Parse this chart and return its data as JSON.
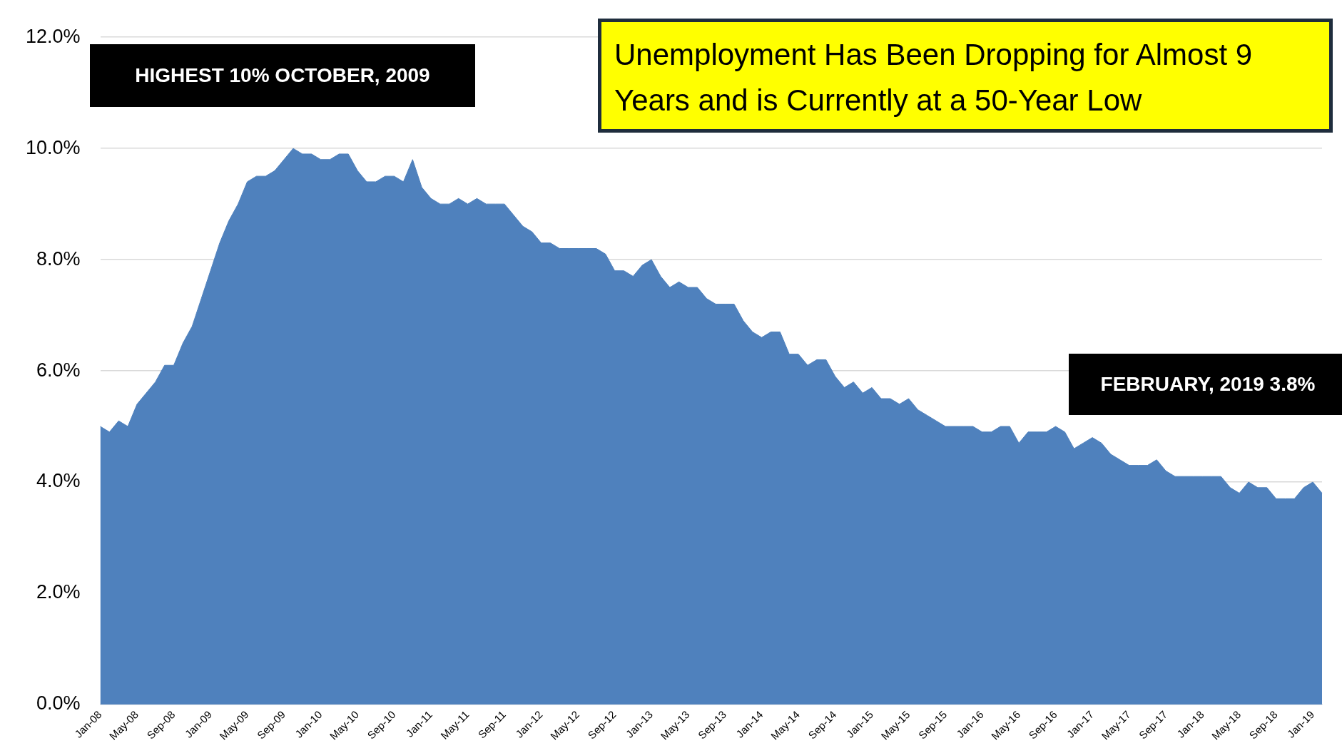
{
  "chart_data": {
    "type": "area",
    "title": "Unemployment Has Been Dropping for Almost 9 Years and is Currently at a 50-Year Low",
    "annotations": [
      "HIGHEST 10% OCTOBER, 2009",
      "FEBRUARY, 2019 3.8%"
    ],
    "categories": [
      "Jan-08",
      null,
      null,
      null,
      "May-08",
      null,
      null,
      null,
      "Sep-08",
      null,
      null,
      null,
      "Jan-09",
      null,
      null,
      null,
      "May-09",
      null,
      null,
      null,
      "Sep-09",
      null,
      null,
      null,
      "Jan-10",
      null,
      null,
      null,
      "May-10",
      null,
      null,
      null,
      "Sep-10",
      null,
      null,
      null,
      "Jan-11",
      null,
      null,
      null,
      "May-11",
      null,
      null,
      null,
      "Sep-11",
      null,
      null,
      null,
      "Jan-12",
      null,
      null,
      null,
      "May-12",
      null,
      null,
      null,
      "Sep-12",
      null,
      null,
      null,
      "Jan-13",
      null,
      null,
      null,
      "May-13",
      null,
      null,
      null,
      "Sep-13",
      null,
      null,
      null,
      "Jan-14",
      null,
      null,
      null,
      "May-14",
      null,
      null,
      null,
      "Sep-14",
      null,
      null,
      null,
      "Jan-15",
      null,
      null,
      null,
      "May-15",
      null,
      null,
      null,
      "Sep-15",
      null,
      null,
      null,
      "Jan-16",
      null,
      null,
      null,
      "May-16",
      null,
      null,
      null,
      "Sep-16",
      null,
      null,
      null,
      "Jan-17",
      null,
      null,
      null,
      "May-17",
      null,
      null,
      null,
      "Sep-17",
      null,
      null,
      null,
      "Jan-18",
      null,
      null,
      null,
      "May-18",
      null,
      null,
      null,
      "Sep-18",
      null,
      null,
      null,
      "Jan-19",
      null
    ],
    "series": [
      {
        "color": "#4f81bd",
        "values": [
          5.0,
          4.9,
          5.1,
          5.0,
          5.4,
          5.6,
          5.8,
          6.1,
          6.1,
          6.5,
          6.8,
          7.3,
          7.8,
          8.3,
          8.7,
          9.0,
          9.4,
          9.5,
          9.5,
          9.6,
          9.8,
          10.0,
          9.9,
          9.9,
          9.8,
          9.8,
          9.9,
          9.9,
          9.6,
          9.4,
          9.4,
          9.5,
          9.5,
          9.4,
          9.8,
          9.3,
          9.1,
          9.0,
          9.0,
          9.1,
          9.0,
          9.1,
          9.0,
          9.0,
          9.0,
          8.8,
          8.6,
          8.5,
          8.3,
          8.3,
          8.2,
          8.2,
          8.2,
          8.2,
          8.2,
          8.1,
          7.8,
          7.8,
          7.7,
          7.9,
          8.0,
          7.7,
          7.5,
          7.6,
          7.5,
          7.5,
          7.3,
          7.2,
          7.2,
          7.2,
          6.9,
          6.7,
          6.6,
          6.7,
          6.7,
          6.3,
          6.3,
          6.1,
          6.2,
          6.2,
          5.9,
          5.7,
          5.8,
          5.6,
          5.7,
          5.5,
          5.5,
          5.4,
          5.5,
          5.3,
          5.2,
          5.1,
          5.0,
          5.0,
          5.0,
          5.0,
          4.9,
          4.9,
          5.0,
          5.0,
          4.7,
          4.9,
          4.9,
          4.9,
          5.0,
          4.9,
          4.6,
          4.7,
          4.8,
          4.7,
          4.5,
          4.4,
          4.3,
          4.3,
          4.3,
          4.4,
          4.2,
          4.1,
          4.1,
          4.1,
          4.1,
          4.1,
          4.1,
          3.9,
          3.8,
          4.0,
          3.9,
          3.9,
          3.7,
          3.7,
          3.7,
          3.9,
          4.0,
          3.8
        ]
      }
    ],
    "ylim": [
      0,
      12
    ],
    "yticks": [
      {
        "value": 0,
        "label": "0.0%"
      },
      {
        "value": 2,
        "label": "2.0%"
      },
      {
        "value": 4,
        "label": "4.0%"
      },
      {
        "value": 6,
        "label": "6.0%"
      },
      {
        "value": 8,
        "label": "8.0%"
      },
      {
        "value": 10,
        "label": "10.0%"
      },
      {
        "value": 12,
        "label": "12.0%"
      }
    ],
    "grid": "y",
    "legend": false
  }
}
